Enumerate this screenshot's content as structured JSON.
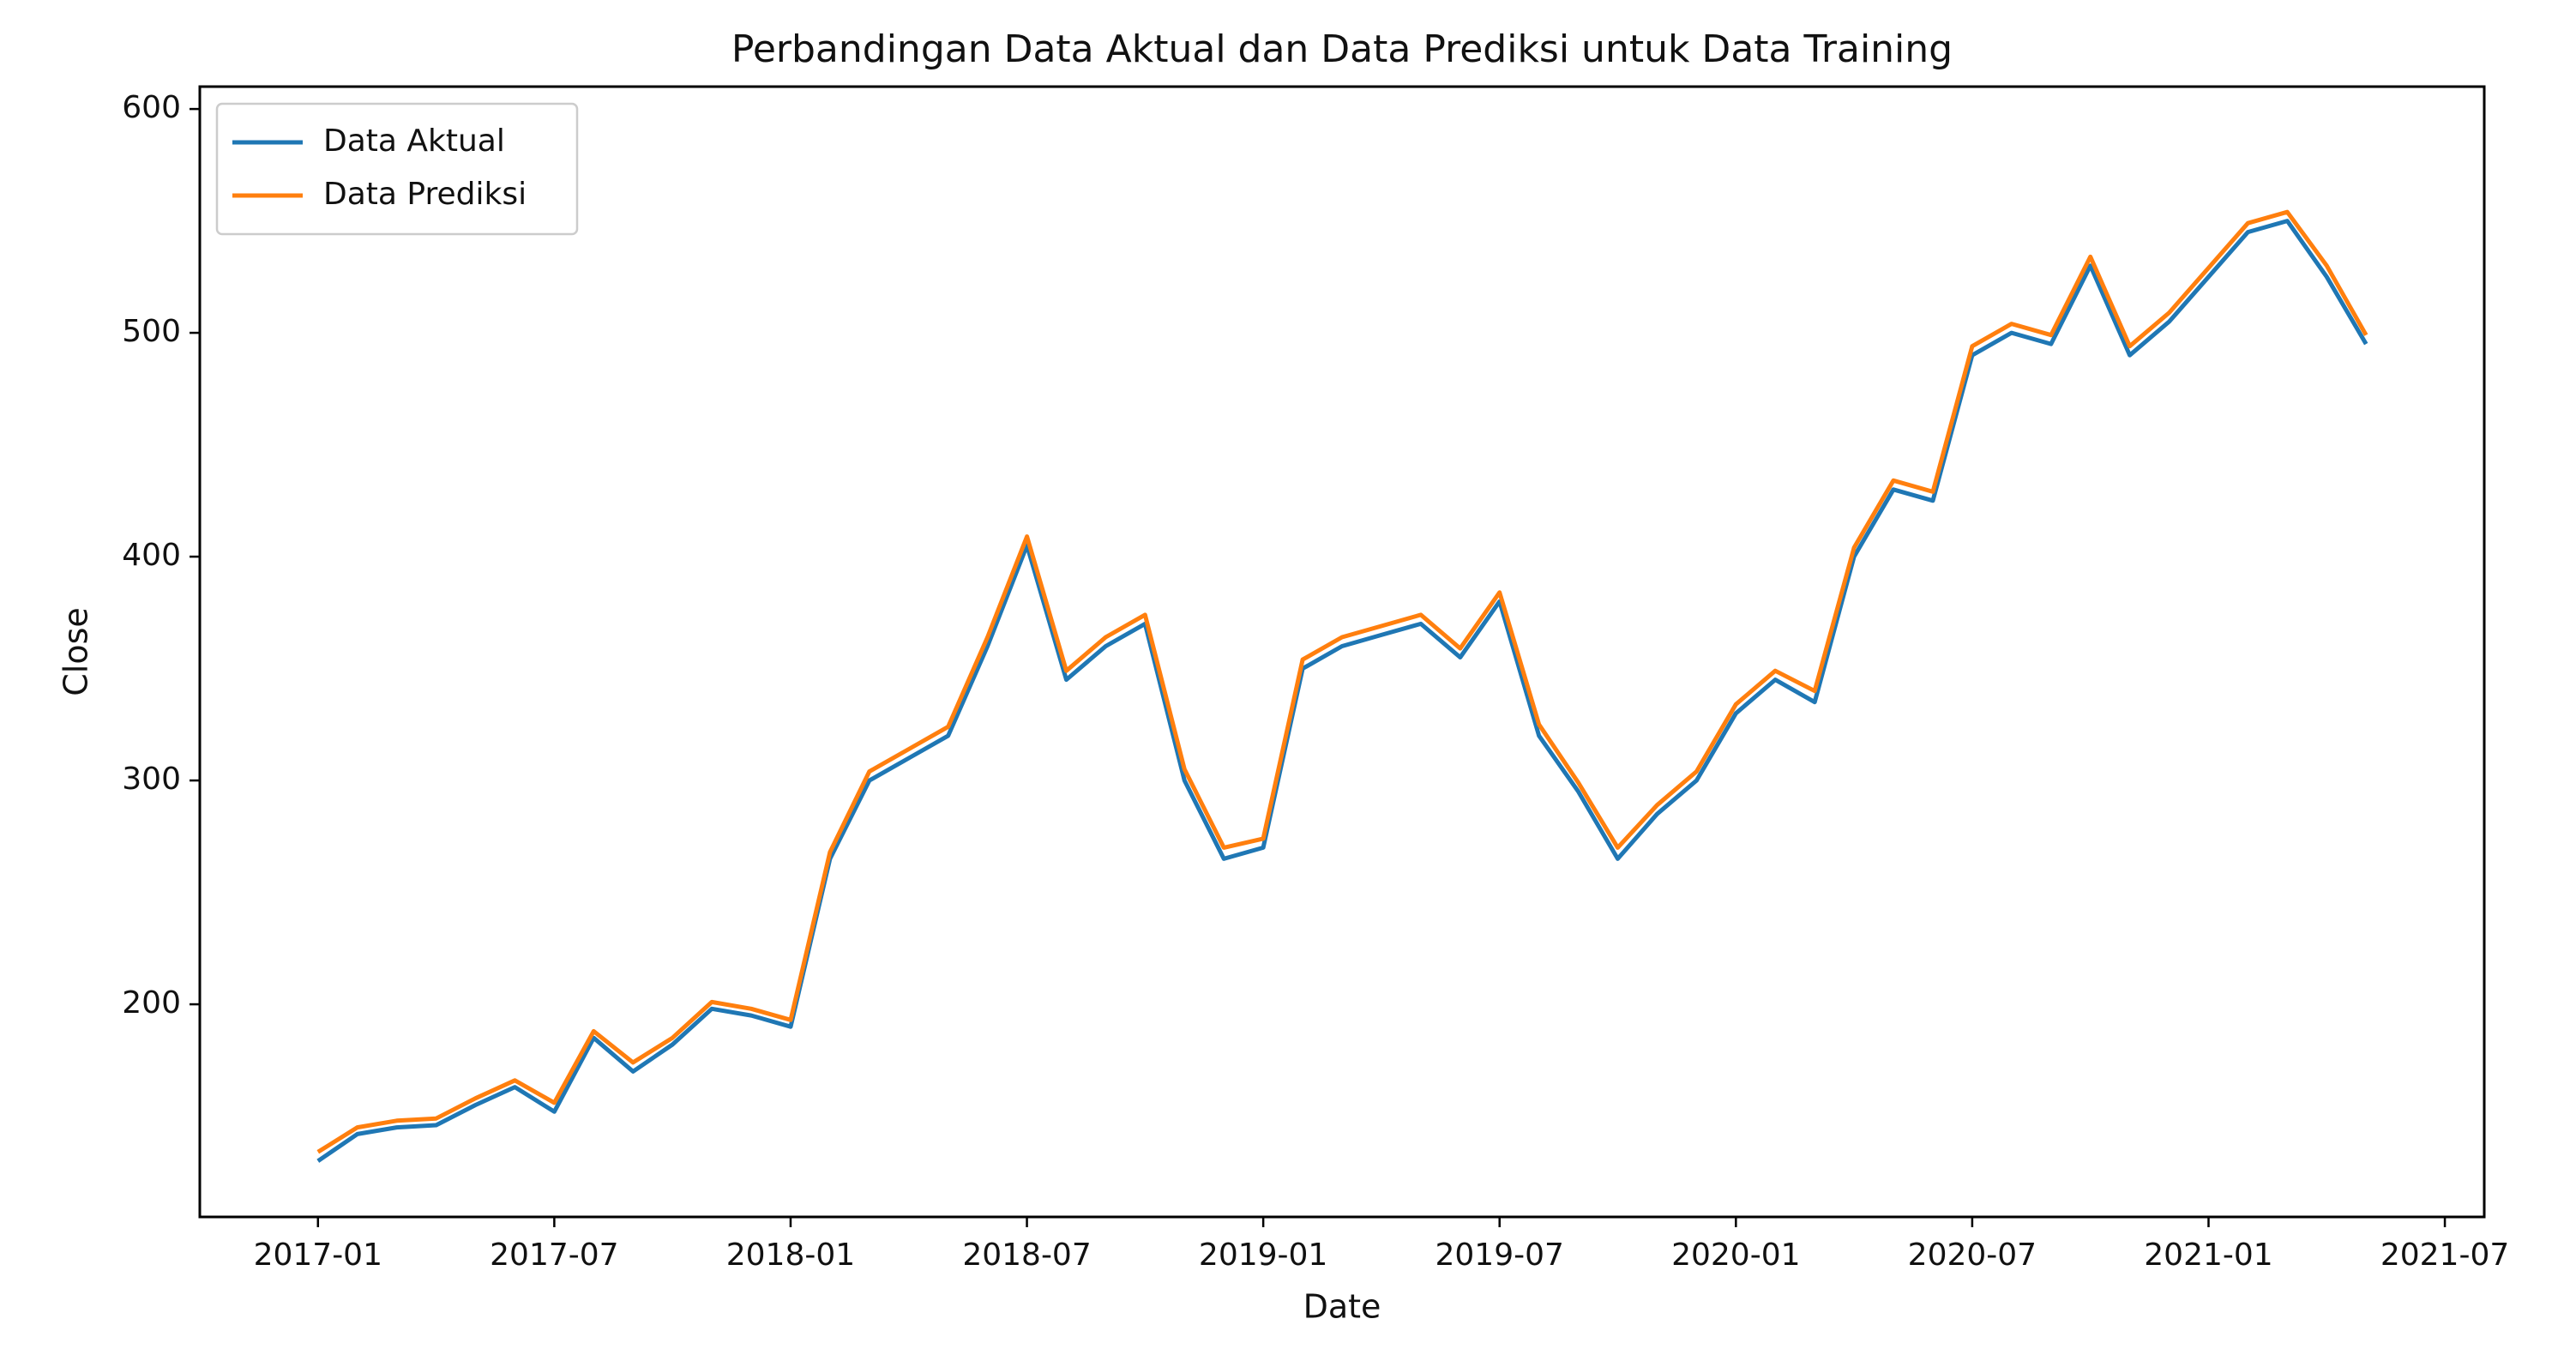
{
  "chart_data": {
    "type": "line",
    "title": "Perbandingan Data Aktual dan Data Prediksi untuk Data Training",
    "xlabel": "Date",
    "ylabel": "Close",
    "x": [
      "2017-01",
      "2017-02",
      "2017-03",
      "2017-04",
      "2017-05",
      "2017-06",
      "2017-07",
      "2017-08",
      "2017-09",
      "2017-10",
      "2017-11",
      "2017-12",
      "2018-01",
      "2018-02",
      "2018-03",
      "2018-04",
      "2018-05",
      "2018-06",
      "2018-07",
      "2018-08",
      "2018-09",
      "2018-10",
      "2018-11",
      "2018-12",
      "2019-01",
      "2019-02",
      "2019-03",
      "2019-04",
      "2019-05",
      "2019-06",
      "2019-07",
      "2019-08",
      "2019-09",
      "2019-10",
      "2019-11",
      "2019-12",
      "2020-01",
      "2020-02",
      "2020-03",
      "2020-04",
      "2020-05",
      "2020-06",
      "2020-07",
      "2020-08",
      "2020-09",
      "2020-10",
      "2020-11",
      "2020-12",
      "2021-01",
      "2021-02",
      "2021-03",
      "2021-04",
      "2021-05"
    ],
    "series": [
      {
        "name": "Data Aktual",
        "color": "#1f77b4",
        "linestyle": "solid",
        "values": [
          130,
          142,
          145,
          146,
          155,
          163,
          152,
          185,
          170,
          182,
          198,
          195,
          190,
          265,
          300,
          310,
          320,
          360,
          405,
          345,
          360,
          370,
          300,
          265,
          270,
          350,
          360,
          365,
          370,
          355,
          380,
          320,
          295,
          265,
          285,
          300,
          330,
          345,
          335,
          400,
          430,
          425,
          490,
          500,
          495,
          530,
          490,
          505,
          525,
          545,
          550,
          525,
          495
        ]
      },
      {
        "name": "Data Prediksi",
        "color": "#ff7f0e",
        "linestyle": "solid",
        "values": [
          134,
          145,
          148,
          149,
          158,
          166,
          156,
          188,
          174,
          185,
          201,
          198,
          193,
          268,
          304,
          314,
          324,
          364,
          409,
          349,
          364,
          374,
          305,
          270,
          274,
          354,
          364,
          369,
          374,
          359,
          384,
          325,
          299,
          270,
          289,
          304,
          334,
          349,
          340,
          404,
          434,
          429,
          494,
          504,
          499,
          534,
          494,
          509,
          529,
          549,
          554,
          530,
          499
        ]
      }
    ],
    "xlim": [
      "2016-10",
      "2021-08"
    ],
    "xticks": [
      "2017-01",
      "2017-07",
      "2018-01",
      "2018-07",
      "2019-01",
      "2019-07",
      "2020-01",
      "2020-07",
      "2021-01",
      "2021-07"
    ],
    "ylim": [
      105,
      610
    ],
    "yticks": [
      200,
      300,
      400,
      500,
      600
    ],
    "grid": false,
    "legend": "upper left"
  }
}
